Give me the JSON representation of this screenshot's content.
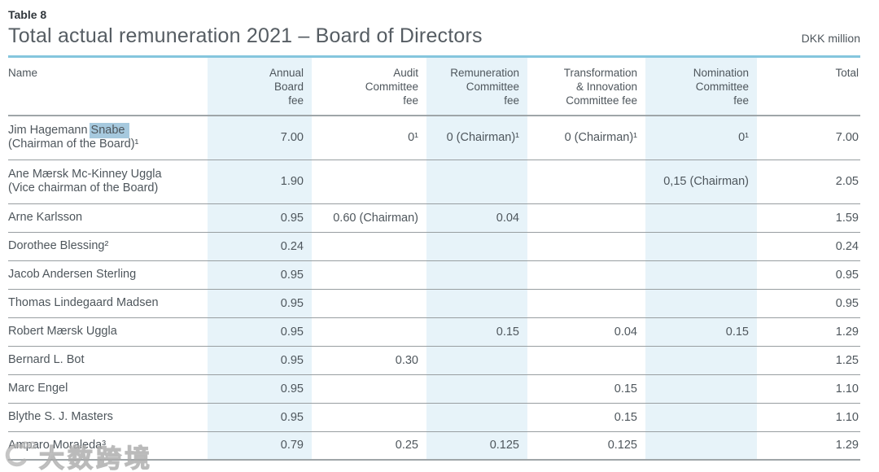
{
  "page": {
    "table_label": "Table 8",
    "title": "Total actual remuneration 2021 – Board of Directors",
    "unit": "DKK million"
  },
  "colors": {
    "band": "#e7f3f9",
    "title_rule": "#85c6dd",
    "selection_highlight": "#a6c9de",
    "text": "#4e565c",
    "row_divider": "#989ea1",
    "header_divider": "#9fa5a8"
  },
  "table": {
    "name_column_header": "Name",
    "columns": [
      {
        "label": "Annual\nBoard\nfee",
        "band": true
      },
      {
        "label": "Audit\nCommittee\nfee",
        "band": false
      },
      {
        "label": "Remuneration\nCommittee\nfee",
        "band": true
      },
      {
        "label": "Transformation\n& Innovation\nCommittee fee",
        "band": false
      },
      {
        "label": "Nomination\nCommittee\nfee",
        "band": true
      },
      {
        "label": "Total",
        "band": false
      }
    ],
    "rows": [
      {
        "name": {
          "line1": "Jim Hagemann ",
          "highlight": "Snabe",
          "line2": "(Chairman of the Board)¹"
        },
        "values": [
          "7.00",
          "0¹",
          "0 (Chairman)¹",
          "0 (Chairman)¹",
          "0¹",
          "7.00"
        ]
      },
      {
        "name": {
          "line1": "Ane Mærsk Mc-Kinney Uggla",
          "line2": "(Vice chairman of the Board)"
        },
        "values": [
          "1.90",
          "",
          "",
          "",
          "0,15 (Chairman)",
          "2.05"
        ]
      },
      {
        "name": {
          "line1": "Arne Karlsson"
        },
        "values": [
          "0.95",
          "0.60 (Chairman)",
          "0.04",
          "",
          "",
          "1.59"
        ]
      },
      {
        "name": {
          "line1": "Dorothee Blessing²"
        },
        "values": [
          "0.24",
          "",
          "",
          "",
          "",
          "0.24"
        ]
      },
      {
        "name": {
          "line1": "Jacob Andersen Sterling"
        },
        "values": [
          "0.95",
          "",
          "",
          "",
          "",
          "0.95"
        ]
      },
      {
        "name": {
          "line1": "Thomas Lindegaard Madsen"
        },
        "values": [
          "0.95",
          "",
          "",
          "",
          "",
          "0.95"
        ]
      },
      {
        "name": {
          "line1": "Robert Mærsk Uggla"
        },
        "values": [
          "0.95",
          "",
          "0.15",
          "0.04",
          "0.15",
          "1.29"
        ]
      },
      {
        "name": {
          "line1": "Bernard L. Bot"
        },
        "values": [
          "0.95",
          "0.30",
          "",
          "",
          "",
          "1.25"
        ]
      },
      {
        "name": {
          "line1": "Marc Engel"
        },
        "values": [
          "0.95",
          "",
          "",
          "0.15",
          "",
          "1.10"
        ]
      },
      {
        "name": {
          "line1": "Blythe S. J. Masters"
        },
        "values": [
          "0.95",
          "",
          "",
          "0.15",
          "",
          "1.10"
        ]
      },
      {
        "name": {
          "line1": "Amparo Moraleda³"
        },
        "values": [
          "0.79",
          "0.25",
          "0.125",
          "0.125",
          "",
          "1.29"
        ]
      }
    ]
  },
  "watermark": {
    "logo_icon": "circle-oo-logo",
    "text": "大数跨境"
  }
}
